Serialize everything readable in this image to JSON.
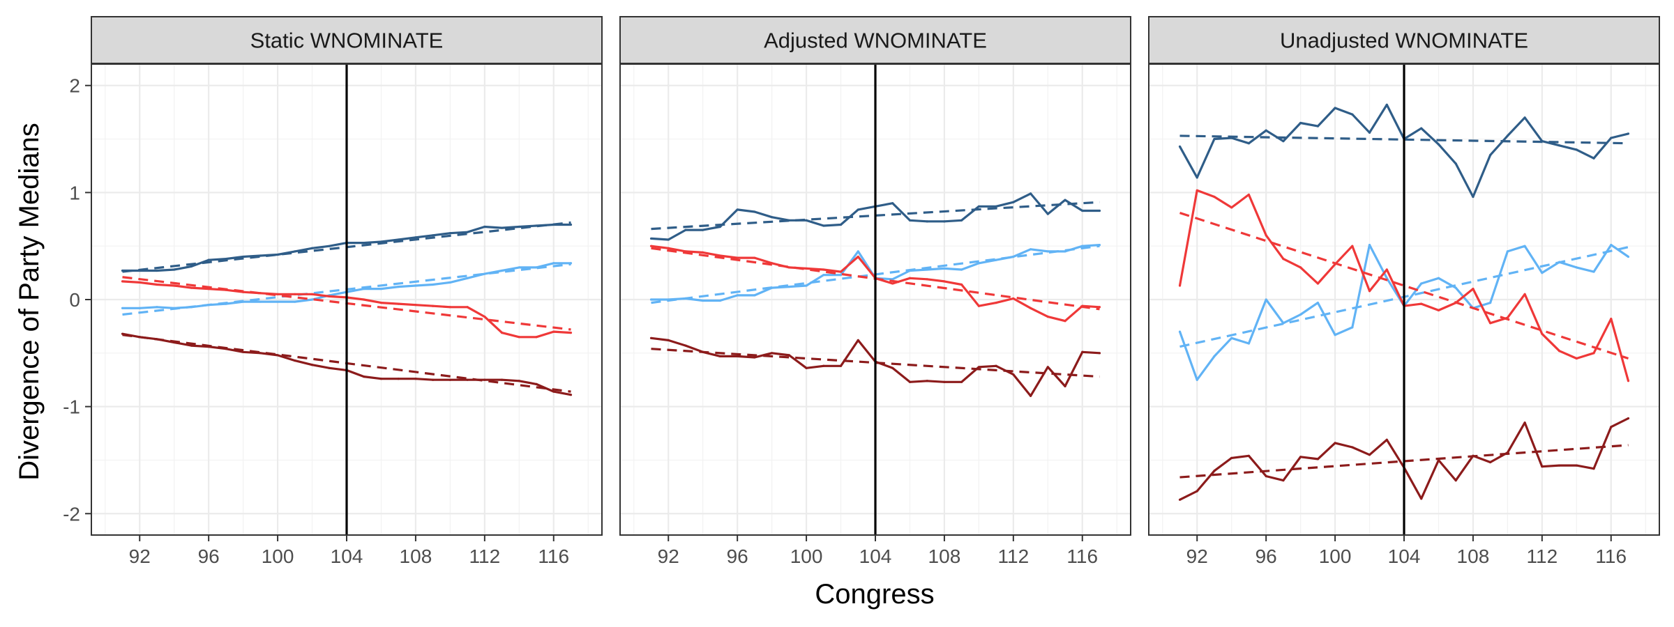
{
  "chart_data": {
    "type": "line",
    "xlabel": "Congress",
    "ylabel": "Divergence of Party Medians",
    "xlim": [
      89.2,
      118.8
    ],
    "ylim": [
      -2.2,
      2.2
    ],
    "x_ticks": [
      92,
      96,
      100,
      104,
      108,
      112,
      116
    ],
    "x_tick_labels": [
      "92",
      "96",
      "100",
      "104",
      "108",
      "112",
      "116"
    ],
    "y_ticks": [
      -2,
      -1,
      0,
      1,
      2
    ],
    "y_tick_labels": [
      "-2",
      "-1",
      "0",
      "1",
      "2"
    ],
    "vline_x": 104,
    "grid": true,
    "legend": "none",
    "x": [
      91,
      92,
      93,
      94,
      95,
      96,
      97,
      98,
      99,
      100,
      101,
      102,
      103,
      104,
      105,
      106,
      107,
      108,
      109,
      110,
      111,
      112,
      113,
      114,
      115,
      116,
      117
    ],
    "colors": {
      "dark_blue": "#2f5d88",
      "light_blue": "#61b3f5",
      "red": "#ef3838",
      "dark_red": "#8c1b1b"
    },
    "panels": [
      {
        "title": "Static WNOMINATE",
        "series": [
          {
            "color": "#2f5d88",
            "values": [
              0.27,
              0.27,
              0.27,
              0.28,
              0.31,
              0.37,
              0.38,
              0.4,
              0.41,
              0.42,
              0.45,
              0.48,
              0.5,
              0.53,
              0.53,
              0.54,
              0.56,
              0.58,
              0.6,
              0.62,
              0.63,
              0.68,
              0.67,
              0.68,
              0.69,
              0.7,
              0.7
            ],
            "trend": [
              0.26,
              0.72
            ]
          },
          {
            "color": "#61b3f5",
            "values": [
              -0.08,
              -0.08,
              -0.07,
              -0.08,
              -0.07,
              -0.05,
              -0.04,
              -0.02,
              -0.02,
              -0.02,
              -0.02,
              0.0,
              0.04,
              0.07,
              0.1,
              0.1,
              0.12,
              0.13,
              0.14,
              0.16,
              0.2,
              0.24,
              0.27,
              0.3,
              0.3,
              0.34,
              0.34
            ],
            "trend": [
              -0.14,
              0.33
            ]
          },
          {
            "color": "#ef3838",
            "values": [
              0.17,
              0.16,
              0.14,
              0.13,
              0.11,
              0.1,
              0.09,
              0.07,
              0.06,
              0.05,
              0.05,
              0.05,
              0.03,
              0.02,
              0.0,
              -0.03,
              -0.04,
              -0.05,
              -0.06,
              -0.07,
              -0.07,
              -0.16,
              -0.31,
              -0.35,
              -0.35,
              -0.3,
              -0.31
            ],
            "trend": [
              0.21,
              -0.28
            ]
          },
          {
            "color": "#8c1b1b",
            "values": [
              -0.32,
              -0.35,
              -0.37,
              -0.4,
              -0.43,
              -0.44,
              -0.46,
              -0.49,
              -0.5,
              -0.52,
              -0.57,
              -0.61,
              -0.64,
              -0.66,
              -0.72,
              -0.74,
              -0.74,
              -0.74,
              -0.75,
              -0.75,
              -0.75,
              -0.75,
              -0.75,
              -0.76,
              -0.79,
              -0.86,
              -0.89
            ],
            "trend": [
              -0.33,
              -0.86
            ]
          }
        ]
      },
      {
        "title": "Adjusted WNOMINATE",
        "series": [
          {
            "color": "#2f5d88",
            "values": [
              0.57,
              0.56,
              0.65,
              0.65,
              0.68,
              0.84,
              0.82,
              0.77,
              0.74,
              0.74,
              0.69,
              0.7,
              0.84,
              0.87,
              0.9,
              0.74,
              0.73,
              0.73,
              0.74,
              0.87,
              0.87,
              0.91,
              0.99,
              0.8,
              0.93,
              0.83,
              0.83
            ],
            "trend": [
              0.66,
              0.91
            ]
          },
          {
            "color": "#61b3f5",
            "values": [
              0.0,
              0.0,
              0.01,
              -0.01,
              -0.01,
              0.04,
              0.04,
              0.11,
              0.12,
              0.13,
              0.23,
              0.23,
              0.45,
              0.2,
              0.19,
              0.27,
              0.28,
              0.29,
              0.28,
              0.34,
              0.37,
              0.4,
              0.47,
              0.45,
              0.45,
              0.5,
              0.51
            ],
            "trend": [
              -0.03,
              0.5
            ]
          },
          {
            "color": "#ef3838",
            "values": [
              0.5,
              0.48,
              0.45,
              0.44,
              0.41,
              0.39,
              0.39,
              0.34,
              0.3,
              0.29,
              0.28,
              0.26,
              0.4,
              0.2,
              0.15,
              0.2,
              0.19,
              0.17,
              0.14,
              -0.06,
              -0.03,
              0.01,
              -0.08,
              -0.16,
              -0.2,
              -0.06,
              -0.07
            ],
            "trend": [
              0.48,
              -0.09
            ]
          },
          {
            "color": "#8c1b1b",
            "values": [
              -0.36,
              -0.38,
              -0.43,
              -0.49,
              -0.53,
              -0.53,
              -0.54,
              -0.5,
              -0.52,
              -0.64,
              -0.62,
              -0.62,
              -0.38,
              -0.58,
              -0.64,
              -0.77,
              -0.76,
              -0.77,
              -0.77,
              -0.63,
              -0.62,
              -0.7,
              -0.9,
              -0.63,
              -0.81,
              -0.49,
              -0.5
            ],
            "trend": [
              -0.46,
              -0.72
            ]
          }
        ]
      },
      {
        "title": "Unadjusted WNOMINATE",
        "series": [
          {
            "color": "#2f5d88",
            "values": [
              1.43,
              1.14,
              1.5,
              1.51,
              1.46,
              1.58,
              1.48,
              1.65,
              1.62,
              1.79,
              1.73,
              1.56,
              1.82,
              1.5,
              1.6,
              1.45,
              1.27,
              0.96,
              1.35,
              1.53,
              1.7,
              1.48,
              1.44,
              1.4,
              1.32,
              1.51,
              1.55
            ],
            "trend": [
              1.53,
              1.46
            ]
          },
          {
            "color": "#61b3f5",
            "values": [
              -0.3,
              -0.75,
              -0.53,
              -0.36,
              -0.41,
              0.0,
              -0.22,
              -0.14,
              -0.03,
              -0.33,
              -0.26,
              0.51,
              0.2,
              -0.06,
              0.15,
              0.2,
              0.11,
              -0.08,
              -0.03,
              0.45,
              0.5,
              0.25,
              0.35,
              0.3,
              0.26,
              0.51,
              0.4
            ],
            "trend": [
              -0.44,
              0.49
            ]
          },
          {
            "color": "#ef3838",
            "values": [
              0.13,
              1.02,
              0.96,
              0.86,
              0.98,
              0.6,
              0.38,
              0.3,
              0.15,
              0.33,
              0.5,
              0.08,
              0.28,
              -0.06,
              -0.04,
              -0.1,
              -0.03,
              0.1,
              -0.22,
              -0.17,
              0.05,
              -0.32,
              -0.48,
              -0.55,
              -0.5,
              -0.18,
              -0.76
            ],
            "trend": [
              0.81,
              -0.55
            ]
          },
          {
            "color": "#8c1b1b",
            "values": [
              -1.87,
              -1.79,
              -1.6,
              -1.48,
              -1.46,
              -1.65,
              -1.69,
              -1.47,
              -1.49,
              -1.34,
              -1.38,
              -1.45,
              -1.31,
              -1.57,
              -1.86,
              -1.5,
              -1.69,
              -1.46,
              -1.52,
              -1.43,
              -1.15,
              -1.56,
              -1.55,
              -1.55,
              -1.58,
              -1.19,
              -1.11
            ],
            "trend": [
              -1.66,
              -1.36
            ]
          }
        ]
      }
    ]
  }
}
